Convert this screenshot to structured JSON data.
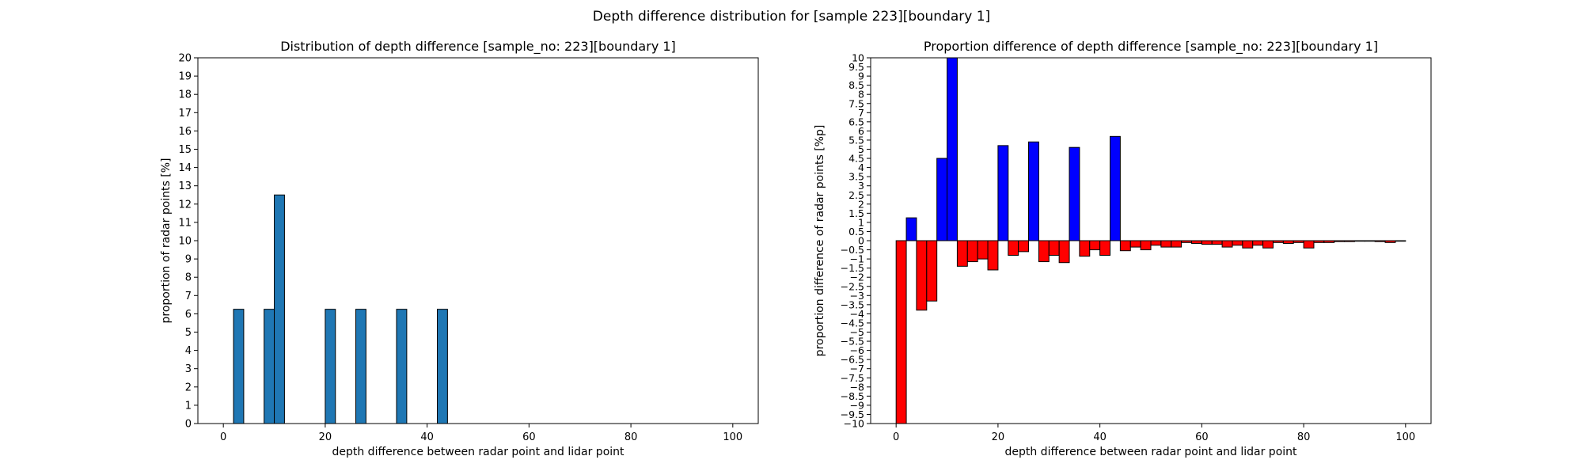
{
  "suptitle": "Depth difference distribution for [sample 223][boundary 1]",
  "chart_data": [
    {
      "type": "bar",
      "title": "Distribution of depth difference [sample_no: 223][boundary 1]",
      "xlabel": "depth difference between radar point and lidar point",
      "ylabel": "proportion of radar points [%]",
      "xlim": [
        -5,
        105
      ],
      "ylim": [
        0,
        20
      ],
      "xticks": [
        0,
        20,
        40,
        60,
        80,
        100
      ],
      "yticks": [
        0,
        1,
        2,
        3,
        4,
        5,
        6,
        7,
        8,
        9,
        10,
        11,
        12,
        13,
        14,
        15,
        16,
        17,
        18,
        19,
        20
      ],
      "bin_width": 2,
      "bar_color": "#1f77b4",
      "edge_color": "#000000",
      "grid": false,
      "bars": [
        {
          "x": 2,
          "value": 6.25
        },
        {
          "x": 8,
          "value": 6.25
        },
        {
          "x": 10,
          "value": 12.5
        },
        {
          "x": 20,
          "value": 6.25
        },
        {
          "x": 26,
          "value": 6.25
        },
        {
          "x": 34,
          "value": 6.25
        },
        {
          "x": 42,
          "value": 6.25
        }
      ]
    },
    {
      "type": "bar",
      "title": "Proportion difference of depth difference [sample_no: 223][boundary 1]",
      "xlabel": "depth difference between radar point and lidar point",
      "ylabel": "proportion difference of radar points [%p]",
      "xlim": [
        -5,
        105
      ],
      "ylim": [
        -10,
        10
      ],
      "xticks": [
        0,
        20,
        40,
        60,
        80,
        100
      ],
      "yticks": [
        -10,
        -9.5,
        -9,
        -8.5,
        -8,
        -7.5,
        -7,
        -6.5,
        -6,
        -5.5,
        -5,
        -4.5,
        -4,
        -3.5,
        -3,
        -2.5,
        -2,
        -1.5,
        -1,
        -0.5,
        0,
        0.5,
        1,
        1.5,
        2,
        2.5,
        3,
        3.5,
        4,
        4.5,
        5,
        5.5,
        6,
        6.5,
        7,
        7.5,
        8,
        8.5,
        9,
        9.5,
        10
      ],
      "bin_width": 2,
      "positive_color": "#0000ff",
      "negative_color": "#ff0000",
      "edge_color": "#000000",
      "grid": false,
      "bars": [
        {
          "x": 0,
          "value": -10.5
        },
        {
          "x": 2,
          "value": 1.25
        },
        {
          "x": 4,
          "value": -3.8
        },
        {
          "x": 6,
          "value": -3.3
        },
        {
          "x": 8,
          "value": 4.5
        },
        {
          "x": 10,
          "value": 10.4
        },
        {
          "x": 12,
          "value": -1.4
        },
        {
          "x": 14,
          "value": -1.15
        },
        {
          "x": 16,
          "value": -1.0
        },
        {
          "x": 18,
          "value": -1.6
        },
        {
          "x": 20,
          "value": 5.2
        },
        {
          "x": 22,
          "value": -0.8
        },
        {
          "x": 24,
          "value": -0.6
        },
        {
          "x": 26,
          "value": 5.4
        },
        {
          "x": 28,
          "value": -1.15
        },
        {
          "x": 30,
          "value": -0.8
        },
        {
          "x": 32,
          "value": -1.2
        },
        {
          "x": 34,
          "value": 5.1
        },
        {
          "x": 36,
          "value": -0.85
        },
        {
          "x": 38,
          "value": -0.5
        },
        {
          "x": 40,
          "value": -0.8
        },
        {
          "x": 42,
          "value": 5.7
        },
        {
          "x": 44,
          "value": -0.55
        },
        {
          "x": 46,
          "value": -0.35
        },
        {
          "x": 48,
          "value": -0.5
        },
        {
          "x": 50,
          "value": -0.25
        },
        {
          "x": 52,
          "value": -0.35
        },
        {
          "x": 54,
          "value": -0.35
        },
        {
          "x": 56,
          "value": -0.1
        },
        {
          "x": 58,
          "value": -0.15
        },
        {
          "x": 60,
          "value": -0.2
        },
        {
          "x": 62,
          "value": -0.2
        },
        {
          "x": 64,
          "value": -0.35
        },
        {
          "x": 66,
          "value": -0.25
        },
        {
          "x": 68,
          "value": -0.4
        },
        {
          "x": 70,
          "value": -0.25
        },
        {
          "x": 72,
          "value": -0.4
        },
        {
          "x": 74,
          "value": -0.1
        },
        {
          "x": 76,
          "value": -0.15
        },
        {
          "x": 78,
          "value": -0.1
        },
        {
          "x": 80,
          "value": -0.4
        },
        {
          "x": 82,
          "value": -0.1
        },
        {
          "x": 84,
          "value": -0.1
        },
        {
          "x": 86,
          "value": -0.05
        },
        {
          "x": 88,
          "value": -0.05
        },
        {
          "x": 90,
          "value": -0.03
        },
        {
          "x": 92,
          "value": -0.03
        },
        {
          "x": 94,
          "value": -0.05
        },
        {
          "x": 96,
          "value": -0.1
        },
        {
          "x": 98,
          "value": -0.03
        }
      ]
    }
  ]
}
